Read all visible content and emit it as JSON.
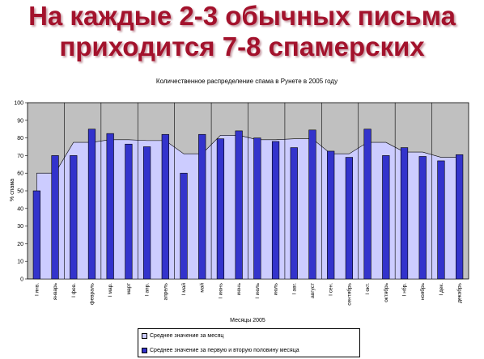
{
  "headline": {
    "line1": "На каждые 2-3 обычных письма",
    "line2": "приходится 7-8 спамерских"
  },
  "colors": {
    "headline": "#a3122c",
    "plot_bg": "#c0c0c0",
    "area_fill": "#ccccff",
    "bar_fill": "#3333cc"
  },
  "chart_data": {
    "type": "bar",
    "title": "Количественное распределение спама в Рунете в 2005 году",
    "xlabel": "Месяцы 2005",
    "ylabel": "% спама",
    "ylim": [
      0,
      100
    ],
    "yticks": [
      0,
      10,
      20,
      30,
      40,
      50,
      60,
      70,
      80,
      90,
      100
    ],
    "grid": false,
    "legend_position": "bottom",
    "categories": [
      "I янв.",
      "январь",
      "I фев.",
      "февраль",
      "I мар.",
      "март",
      "I апр.",
      "апрель",
      "I май",
      "май",
      "I июнь",
      "июнь",
      "I июль",
      "июль",
      "I авг.",
      "август",
      "I сен.",
      "сентябрь",
      "I окт.",
      "октябрь",
      "I нбр.",
      "ноябрь",
      "I дек.",
      "декабрь"
    ],
    "month_average": [
      60,
      60,
      77.5,
      77.5,
      79,
      79,
      78.5,
      78.5,
      71,
      71,
      81.5,
      81.5,
      79,
      79,
      79.5,
      79.5,
      71,
      71,
      77.5,
      77.5,
      72,
      72,
      69,
      69
    ],
    "series": [
      {
        "name": "Среднее значение за месяц",
        "type": "area",
        "values": [
          60,
          60,
          77.5,
          77.5,
          79,
          79,
          78.5,
          78.5,
          71,
          71,
          81.5,
          81.5,
          79,
          79,
          79.5,
          79.5,
          71,
          71,
          77.5,
          77.5,
          72,
          72,
          69,
          69
        ]
      },
      {
        "name": "Среднее значение за первую и вторую половину месяца",
        "type": "bar",
        "values": [
          50,
          70,
          70,
          85,
          82.5,
          76.5,
          75,
          82,
          60,
          82,
          79.5,
          84,
          80,
          78,
          74.5,
          84.5,
          72.5,
          69,
          85,
          70,
          74.5,
          69.5,
          67,
          70.5
        ]
      }
    ]
  }
}
